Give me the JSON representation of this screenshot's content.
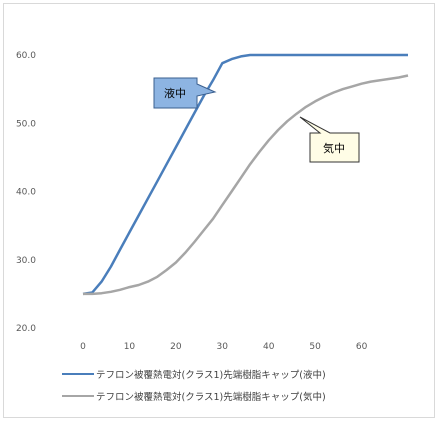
{
  "chart_data": {
    "type": "line",
    "xlim": [
      0,
      70
    ],
    "ylim": [
      20,
      60
    ],
    "x_ticks": [
      "0",
      "10",
      "20",
      "30",
      "40",
      "50",
      "60"
    ],
    "y_ticks": [
      "20.0",
      "30.0",
      "40.0",
      "50.0",
      "60.0"
    ],
    "grid": false,
    "legend_position": "bottom",
    "series": [
      {
        "name": "テフロン被覆熱電対(クラス1)先端樹脂キャップ(液中)",
        "color": "#4a7ebb",
        "x": [
          0,
          2,
          4,
          6,
          8,
          10,
          12,
          14,
          16,
          18,
          20,
          22,
          24,
          26,
          28,
          30,
          32,
          34,
          36,
          38,
          40,
          45,
          50,
          55,
          60,
          65,
          70
        ],
        "y": [
          25.0,
          25.2,
          26.8,
          29.0,
          31.5,
          34.0,
          36.5,
          39.0,
          41.5,
          44.0,
          46.5,
          49.0,
          51.5,
          54.0,
          56.3,
          58.8,
          59.4,
          59.8,
          60.0,
          60.0,
          60.0,
          60.0,
          60.0,
          60.0,
          60.0,
          60.0,
          60.0
        ]
      },
      {
        "name": "テフロン被覆熱電対(クラス1)先端樹脂キャップ(気中)",
        "color": "#a6a6a6",
        "x": [
          0,
          2,
          4,
          6,
          8,
          10,
          12,
          14,
          16,
          18,
          20,
          22,
          24,
          26,
          28,
          30,
          32,
          34,
          36,
          38,
          40,
          42,
          44,
          46,
          48,
          50,
          52,
          54,
          56,
          58,
          60,
          62,
          64,
          66,
          68,
          70
        ],
        "y": [
          25.0,
          25.0,
          25.1,
          25.3,
          25.6,
          26.0,
          26.3,
          26.8,
          27.5,
          28.5,
          29.6,
          31.0,
          32.6,
          34.3,
          36.0,
          38.0,
          40.0,
          42.0,
          44.0,
          45.8,
          47.5,
          49.0,
          50.3,
          51.4,
          52.4,
          53.2,
          53.9,
          54.5,
          55.0,
          55.4,
          55.8,
          56.1,
          56.3,
          56.5,
          56.7,
          57.0
        ]
      }
    ],
    "annotations": [
      {
        "text": "液中",
        "series": 0,
        "style": "filled"
      },
      {
        "text": "気中",
        "series": 1,
        "style": "outlined"
      }
    ]
  },
  "colors": {
    "liquid_callout_fill": "#8db4e2",
    "gas_callout_fill": "#fffde6",
    "axis_text": "#595959"
  }
}
